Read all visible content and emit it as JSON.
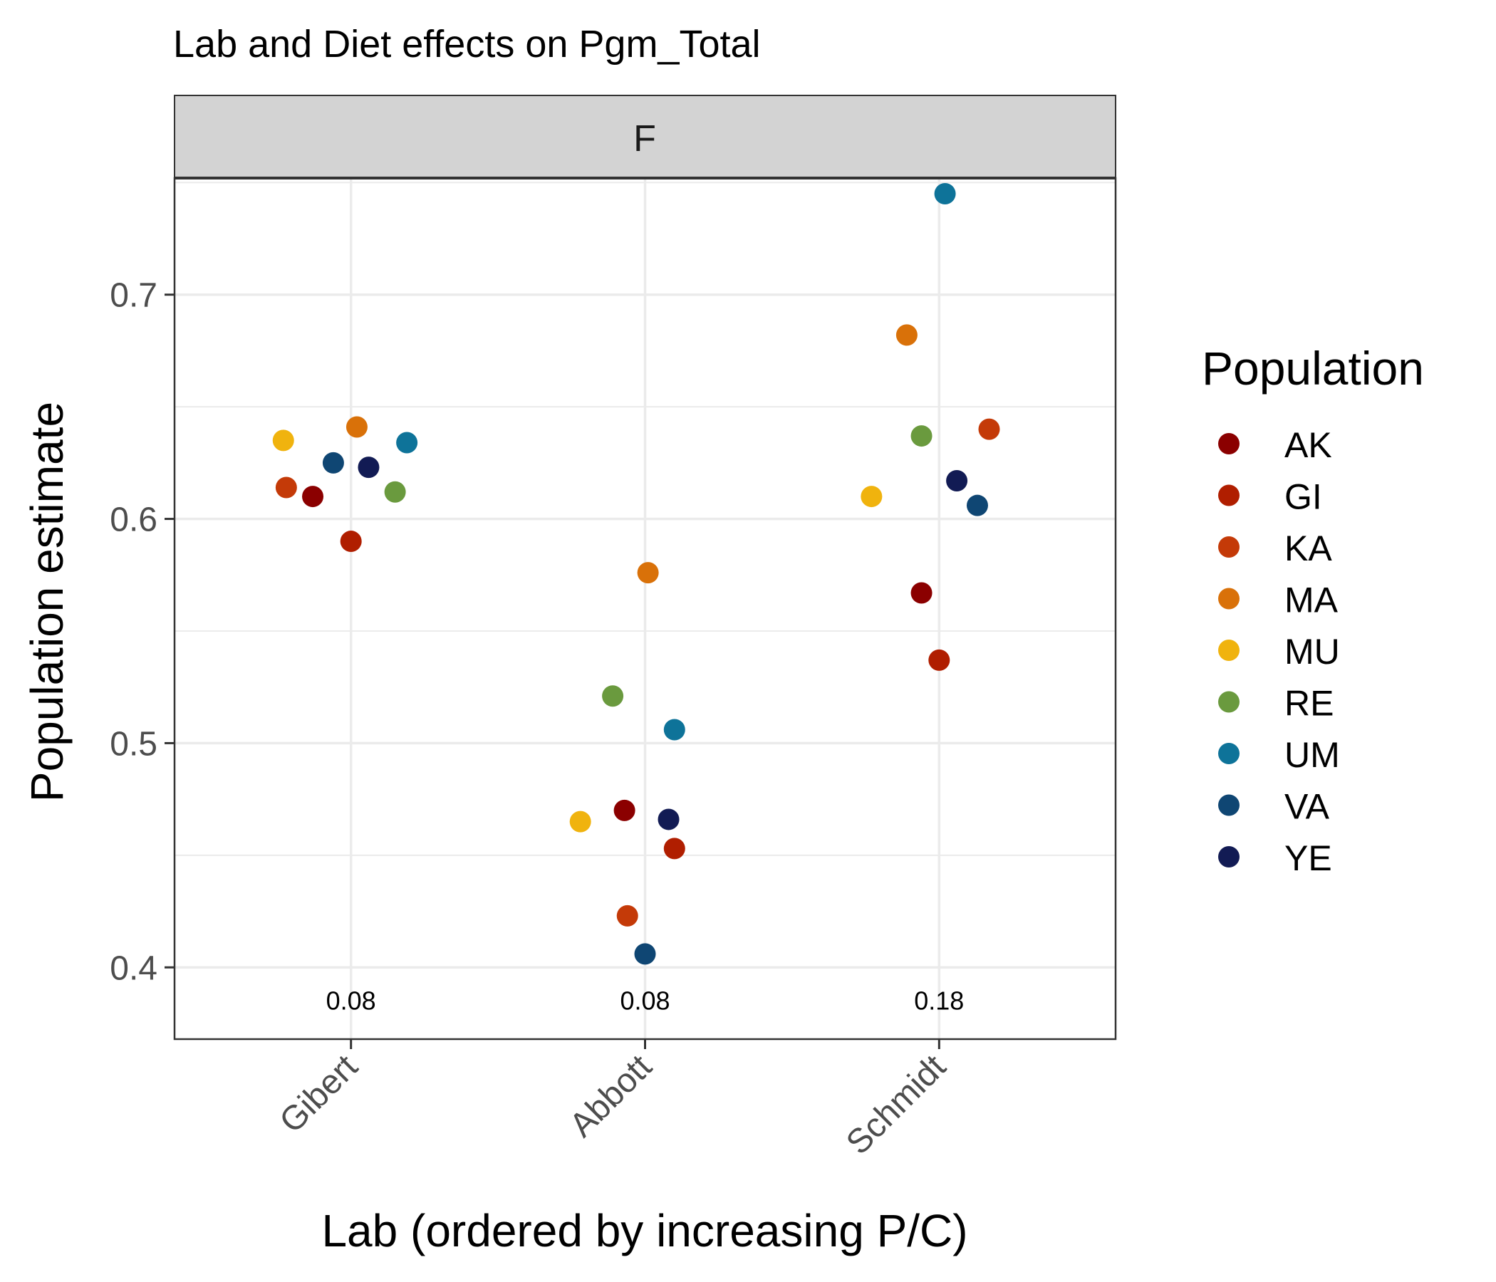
{
  "chart_data": {
    "type": "scatter",
    "title": "Lab and Diet effects on Pgm_Total",
    "facet_label": "F",
    "xlabel": "Lab (ordered by increasing P/C)",
    "ylabel": "Population estimate",
    "categories": [
      "Gibert",
      "Abbott",
      "Schmidt"
    ],
    "category_annotations": [
      "0.08",
      "0.08",
      "0.18"
    ],
    "annotation_y": 0.385,
    "ylim": [
      0.368,
      0.752
    ],
    "yticks": [
      0.4,
      0.5,
      0.6,
      0.7
    ],
    "ytick_labels": [
      "0.4",
      "0.5",
      "0.6",
      "0.7"
    ],
    "grid": true,
    "legend": {
      "title": "Population",
      "position": "right"
    },
    "series": [
      {
        "name": "AK",
        "color": "#8B0000",
        "values": [
          0.61,
          0.47,
          0.567
        ],
        "jitter": [
          -0.13,
          -0.07,
          -0.06
        ]
      },
      {
        "name": "GI",
        "color": "#B01E00",
        "values": [
          0.59,
          0.453,
          0.537
        ],
        "jitter": [
          0.0,
          0.1,
          0.0
        ]
      },
      {
        "name": "KA",
        "color": "#C43A08",
        "values": [
          0.614,
          0.423,
          0.64
        ],
        "jitter": [
          -0.22,
          -0.06,
          0.17
        ]
      },
      {
        "name": "MA",
        "color": "#D97109",
        "values": [
          0.641,
          0.576,
          0.682
        ],
        "jitter": [
          0.02,
          0.01,
          -0.11
        ]
      },
      {
        "name": "MU",
        "color": "#F0B30E",
        "values": [
          0.635,
          0.465,
          0.61
        ],
        "jitter": [
          -0.23,
          -0.22,
          -0.23
        ]
      },
      {
        "name": "RE",
        "color": "#6A9A3E",
        "values": [
          0.612,
          0.521,
          0.637
        ],
        "jitter": [
          0.15,
          -0.11,
          -0.06
        ]
      },
      {
        "name": "UM",
        "color": "#0E7399",
        "values": [
          0.634,
          0.506,
          0.745
        ],
        "jitter": [
          0.19,
          0.1,
          0.02
        ]
      },
      {
        "name": "VA",
        "color": "#0F4673",
        "values": [
          0.625,
          0.406,
          0.606
        ],
        "jitter": [
          -0.06,
          0.0,
          0.13
        ]
      },
      {
        "name": "YE",
        "color": "#121B54",
        "values": [
          0.623,
          0.466,
          0.617
        ],
        "jitter": [
          0.06,
          0.08,
          0.06
        ]
      }
    ]
  }
}
